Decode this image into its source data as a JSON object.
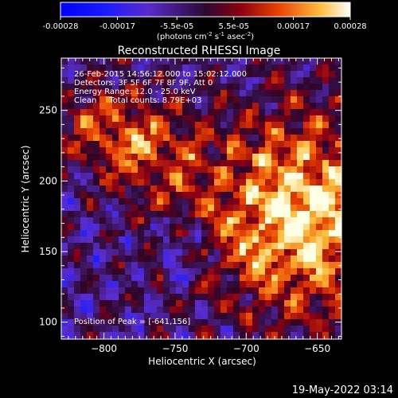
{
  "colorbar": {
    "tick_labels": [
      "-0.00028",
      "-0.00017",
      "-5.5e-05",
      "5.5e-05",
      "0.00017",
      "0.00028"
    ],
    "tick_values": [
      -0.00028,
      -0.00017,
      -5.5e-05,
      5.5e-05,
      0.00017,
      0.00028
    ],
    "range": [
      -0.00028,
      0.00028
    ],
    "unit_parts": {
      "a": "(photons cm",
      "b": "-2",
      "c": " s",
      "d": "-1",
      "e": " asec",
      "f": "-2",
      "g": ")"
    }
  },
  "chart_data": {
    "type": "heatmap",
    "title": "Reconstructed RHESSI Image",
    "xlabel": "Heliocentric X (arcsec)",
    "ylabel": "Heliocentric Y (arcsec)",
    "xlim": [
      -830,
      -633
    ],
    "ylim": [
      88,
      287
    ],
    "x_ticks": [
      -800,
      -750,
      -700,
      -650
    ],
    "y_ticks": [
      100,
      150,
      200,
      250
    ],
    "x_tick_labels": [
      "−800",
      "−750",
      "−700",
      "−650"
    ],
    "y_tick_labels": [
      "100",
      "150",
      "200",
      "250"
    ],
    "annotations": [
      "26-Feb-2015 14:56:12.000 to 15:02:12.000",
      "Detectors: 3F 5F 6F 7F 8F 9F, Att 0",
      "Energy Range: 12.0 - 25.0 keV",
      "Clean     Total counts: 8.79E+03"
    ],
    "peak_label": "Position of Peak = [-641,156]",
    "peak_position": [
      -641,
      156
    ]
  },
  "footer": {
    "timestamp": "19-May-2022 03:14"
  },
  "colors": {
    "background": "#000000",
    "text": "#ffffff"
  }
}
